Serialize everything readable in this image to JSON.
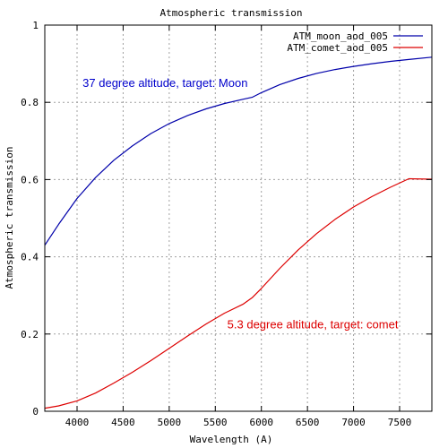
{
  "chart_data": {
    "type": "line",
    "title": "Atmospheric transmission",
    "xlabel": "Wavelength (A)",
    "ylabel": "Atmospheric transmission",
    "xlim": [
      3650,
      7850
    ],
    "ylim": [
      0,
      1
    ],
    "x_ticks": [
      4000,
      4500,
      5000,
      5500,
      6000,
      6500,
      7000,
      7500
    ],
    "y_ticks": [
      0,
      0.2,
      0.4,
      0.6,
      0.8,
      1
    ],
    "y_tick_labels": [
      "0",
      "0.2",
      "0.4",
      "0.6",
      "0.8",
      "1"
    ],
    "grid": true,
    "legend_position": "top-right",
    "series": [
      {
        "name": "ATM_moon_aod_005",
        "color": "#0000aa",
        "x": [
          3650,
          3800,
          4000,
          4200,
          4400,
          4600,
          4800,
          5000,
          5200,
          5400,
          5600,
          5800,
          5900,
          6000,
          6200,
          6400,
          6600,
          6800,
          7000,
          7200,
          7400,
          7600,
          7850
        ],
        "y": [
          0.43,
          0.484,
          0.551,
          0.605,
          0.65,
          0.687,
          0.719,
          0.745,
          0.766,
          0.783,
          0.797,
          0.808,
          0.813,
          0.825,
          0.846,
          0.862,
          0.875,
          0.885,
          0.893,
          0.9,
          0.906,
          0.911,
          0.917
        ]
      },
      {
        "name": "ATM_comet_aod_005",
        "color": "#dd0000",
        "x": [
          3650,
          3800,
          4000,
          4200,
          4400,
          4600,
          4800,
          5000,
          5200,
          5400,
          5600,
          5800,
          5900,
          6000,
          6200,
          6400,
          6600,
          6800,
          7000,
          7200,
          7400,
          7600,
          7850
        ],
        "y": [
          0.008,
          0.014,
          0.027,
          0.047,
          0.073,
          0.101,
          0.131,
          0.163,
          0.195,
          0.226,
          0.254,
          0.277,
          0.294,
          0.318,
          0.37,
          0.418,
          0.46,
          0.497,
          0.529,
          0.556,
          0.58,
          0.602,
          0.601
        ]
      }
    ],
    "annotations": [
      {
        "text": "37 degree altitude, target: Moon",
        "x": 4060,
        "y": 0.84,
        "color": "#0000cc"
      },
      {
        "text": "5.3 degree altitude, target: comet",
        "x": 5630,
        "y": 0.215,
        "color": "#dd0000"
      }
    ]
  }
}
